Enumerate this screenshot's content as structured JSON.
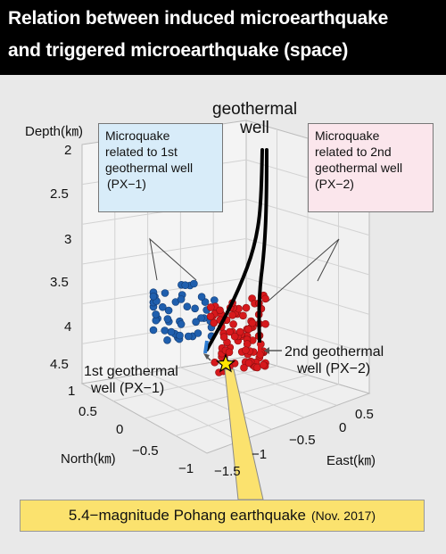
{
  "header": {
    "title_line_1": "Relation between induced microearthquake",
    "title_line_2": "and triggered microearthquake (space)"
  },
  "chart_data": {
    "type": "scatter3d",
    "title": "Relation between induced microearthquake and triggered microearthquake (space)",
    "zlabel": "Depth(㎞)",
    "ylabel": "North(㎞)",
    "xlabel": "East(㎞)",
    "depth_ticks": [
      "2",
      "2.5",
      "3",
      "3.5",
      "4",
      "4.5"
    ],
    "north_ticks": [
      "1",
      "0.5",
      "0",
      "−0.5",
      "−1"
    ],
    "east_ticks": [
      "−1.5",
      "−1",
      "−0.5",
      "0",
      "0.5"
    ],
    "grid": true,
    "series": [
      {
        "name": "Microquake related to 1st geothermal well (PX−1)",
        "color": "#1f5fae"
      },
      {
        "name": "Microquake related to 2nd geothermal well (PX−2)",
        "color": "#d7191c"
      }
    ],
    "colors": {
      "px1": "#1f5fae",
      "px2": "#d7191c",
      "mainshock": "#ffe600",
      "well": "#000000"
    }
  },
  "labels": {
    "geothermal_well": [
      "geothermal",
      "well"
    ],
    "callout_px1": [
      "Microquake",
      "related to 1st",
      "geothermal well",
      "(PX−1)"
    ],
    "callout_px2": [
      "Microquake",
      "related to 2nd",
      "geothermal well",
      "(PX−2)"
    ],
    "well_1st": [
      "1st geothermal",
      "well (PX−1)"
    ],
    "well_2nd": [
      "2nd geothermal",
      "well (PX−2)"
    ],
    "quake_main": "5.4−magnitude Pohang earthquake",
    "quake_date": "(Nov. 2017)"
  }
}
